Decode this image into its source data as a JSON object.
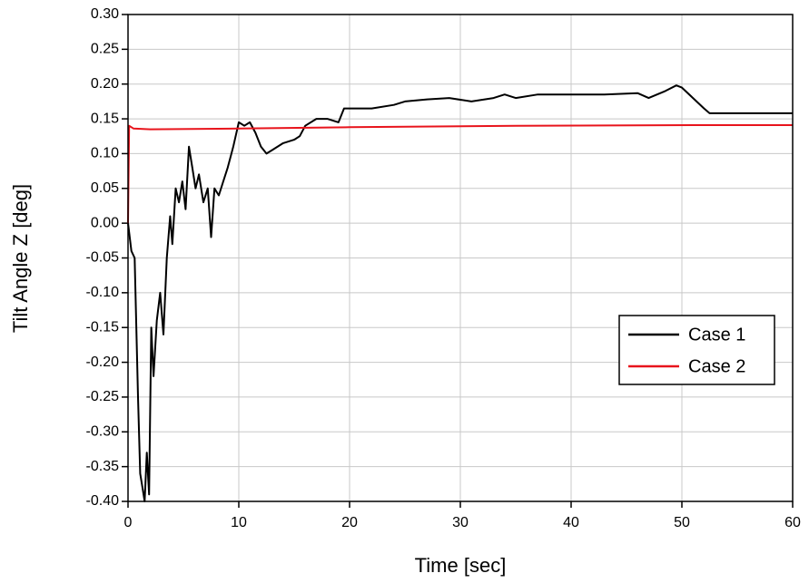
{
  "chart_data": {
    "type": "line",
    "x_label": "Time [sec]",
    "y_label": "Tilt Angle Z [deg]",
    "xlim": [
      0,
      60
    ],
    "xticks": [
      0,
      10,
      20,
      30,
      40,
      50,
      60
    ],
    "ylim": [
      -0.4,
      0.3
    ],
    "yticks": [
      {
        "value": -0.4,
        "label": "-0.40"
      },
      {
        "value": -0.35,
        "label": "-0.35"
      },
      {
        "value": -0.3,
        "label": "-0.30"
      },
      {
        "value": -0.25,
        "label": "-0.25"
      },
      {
        "value": -0.2,
        "label": "-0.20"
      },
      {
        "value": -0.15,
        "label": "-0.15"
      },
      {
        "value": -0.1,
        "label": "-0.10"
      },
      {
        "value": -0.05,
        "label": "-0.05"
      },
      {
        "value": 0,
        "label": "0.00"
      },
      {
        "value": 0.05,
        "label": "0.05"
      },
      {
        "value": 0.1,
        "label": "0.10"
      },
      {
        "value": 0.15,
        "label": "0.15"
      },
      {
        "value": 0.2,
        "label": "0.20"
      },
      {
        "value": 0.25,
        "label": "0.25"
      },
      {
        "value": 0.3,
        "label": "0.30"
      }
    ],
    "grid": true,
    "legend": "center right",
    "series": [
      {
        "name": "Case 1",
        "color": "#000000",
        "x": [
          0,
          0.3,
          0.6,
          0.9,
          1.1,
          1.3,
          1.5,
          1.7,
          1.9,
          2.1,
          2.3,
          2.6,
          2.9,
          3.2,
          3.5,
          3.8,
          4.0,
          4.3,
          4.6,
          4.9,
          5.2,
          5.5,
          5.8,
          6.1,
          6.4,
          6.8,
          7.2,
          7.5,
          7.8,
          8.2,
          8.6,
          9.0,
          9.5,
          10.0,
          10.5,
          11.0,
          11.5,
          12.0,
          12.5,
          13.0,
          14.0,
          15.0,
          15.5,
          16.0,
          17.0,
          18.0,
          19.0,
          19.5,
          20,
          22,
          24,
          25,
          27,
          29,
          31,
          33,
          34,
          35,
          37,
          40,
          43,
          46,
          47,
          48.5,
          49.5,
          50,
          51,
          52,
          52.5,
          54,
          60
        ],
        "values": [
          0,
          -0.04,
          -0.05,
          -0.25,
          -0.36,
          -0.38,
          -0.4,
          -0.33,
          -0.39,
          -0.15,
          -0.22,
          -0.14,
          -0.1,
          -0.16,
          -0.05,
          0.01,
          -0.03,
          0.05,
          0.03,
          0.06,
          0.02,
          0.11,
          0.08,
          0.05,
          0.07,
          0.03,
          0.05,
          -0.02,
          0.05,
          0.04,
          0.06,
          0.08,
          0.11,
          0.145,
          0.14,
          0.145,
          0.13,
          0.11,
          0.1,
          0.105,
          0.115,
          0.12,
          0.125,
          0.14,
          0.15,
          0.15,
          0.145,
          0.165,
          0.165,
          0.165,
          0.17,
          0.175,
          0.178,
          0.18,
          0.175,
          0.18,
          0.185,
          0.18,
          0.185,
          0.185,
          0.185,
          0.187,
          0.18,
          0.19,
          0.198,
          0.195,
          0.18,
          0.165,
          0.158,
          0.158,
          0.158
        ]
      },
      {
        "name": "Case 2",
        "color": "#e8141c",
        "x": [
          0,
          0.1,
          0.5,
          2,
          10,
          20,
          35,
          52,
          60
        ],
        "values": [
          0,
          0.14,
          0.136,
          0.135,
          0.136,
          0.138,
          0.14,
          0.141,
          0.141
        ]
      }
    ]
  }
}
